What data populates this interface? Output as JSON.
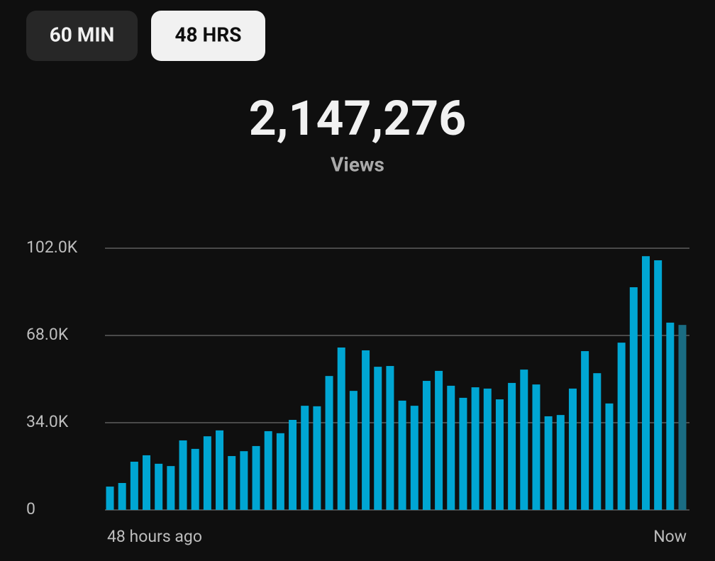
{
  "tabs": [
    "60 MIN",
    "48 HRS"
  ],
  "chart_data": {
    "type": "bar",
    "title": "2,147,276",
    "subtitle": "Views",
    "categories": [
      "48 hours ago",
      null,
      null,
      null,
      null,
      null,
      null,
      null,
      null,
      null,
      null,
      null,
      null,
      null,
      null,
      null,
      null,
      null,
      null,
      null,
      null,
      null,
      null,
      null,
      null,
      null,
      null,
      null,
      null,
      null,
      null,
      null,
      null,
      null,
      null,
      null,
      null,
      null,
      null,
      null,
      null,
      null,
      null,
      null,
      null,
      null,
      null,
      "Now"
    ],
    "values": [
      9100,
      10500,
      18800,
      21300,
      18000,
      17100,
      27100,
      23800,
      28700,
      31000,
      21000,
      22900,
      24900,
      30700,
      29900,
      35100,
      40600,
      40400,
      52200,
      63300,
      46400,
      62200,
      55800,
      56100,
      42600,
      40600,
      50300,
      54200,
      48400,
      43700,
      47800,
      47300,
      43100,
      49500,
      54700,
      48900,
      36500,
      37000,
      47300,
      61900,
      53300,
      41500,
      65200,
      86800,
      98900,
      97300,
      73000,
      72100
    ],
    "color": "#00a6d3",
    "partial_color": "#1a6c83",
    "ylim": [
      0,
      102000
    ],
    "yticks": [
      0,
      {
        "value": 34000,
        "label": "34.0K"
      },
      {
        "value": 68000,
        "label": "68.0K"
      },
      {
        "value": 102000,
        "label": "102.0K"
      }
    ],
    "grid": true
  }
}
